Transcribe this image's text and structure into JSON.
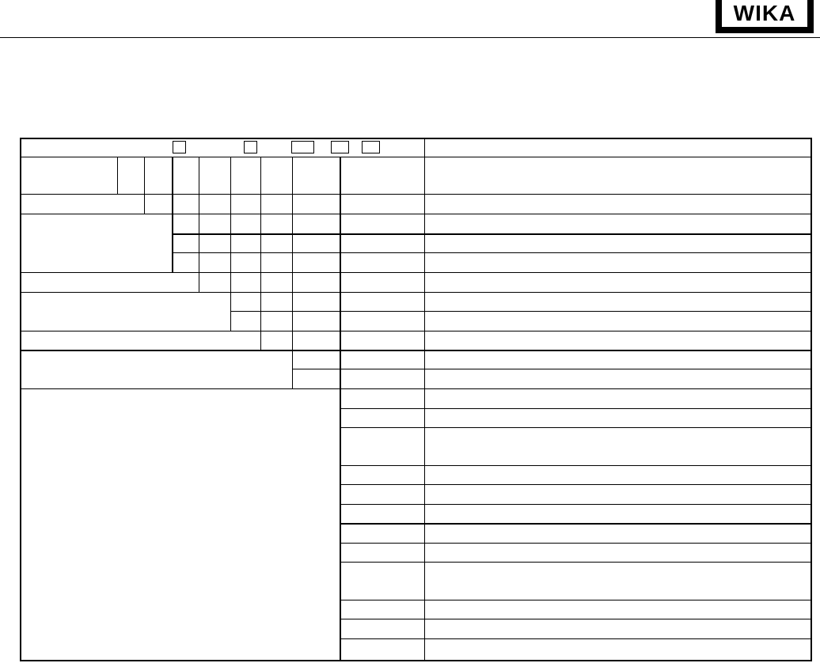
{
  "header": {
    "logo_text": "WIKA"
  },
  "table": {
    "rows": []
  },
  "colors": {
    "line": "#000000",
    "background": "#ffffff"
  }
}
